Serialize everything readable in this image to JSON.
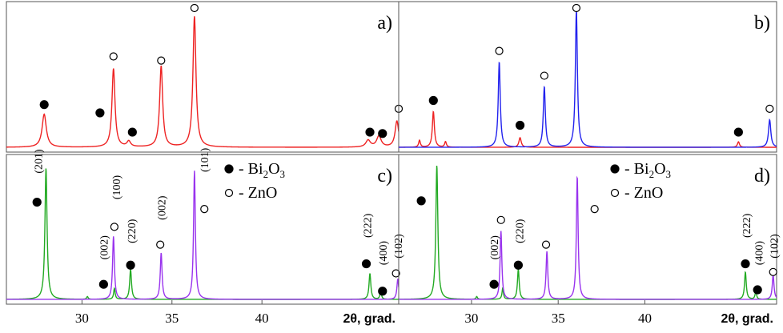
{
  "figure": {
    "x_axis_title": "2θ, grad.",
    "x_ticks": [
      30,
      35,
      40
    ],
    "marker_colors": {
      "Bi2O3": "#000000",
      "ZnO": "#ffffff"
    }
  },
  "chart_data": [
    {
      "panel": "a)",
      "type": "line",
      "xlim": [
        25.8,
        47.6
      ],
      "series": [
        {
          "color": "#ee2222",
          "peaks": [
            {
              "x": 27.9,
              "h": 0.24,
              "w": 0.14
            },
            {
              "x": 31.75,
              "h": 0.57,
              "w": 0.1
            },
            {
              "x": 32.6,
              "h": 0.04,
              "w": 0.12
            },
            {
              "x": 34.4,
              "h": 0.59,
              "w": 0.1
            },
            {
              "x": 36.25,
              "h": 0.95,
              "w": 0.1
            },
            {
              "x": 45.9,
              "h": 0.05,
              "w": 0.15
            },
            {
              "x": 46.5,
              "h": 0.08,
              "w": 0.15
            },
            {
              "x": 47.5,
              "h": 0.19,
              "w": 0.12
            }
          ]
        }
      ],
      "markers": [
        {
          "x": 27.9,
          "h": 0.31,
          "phase": "Bi2O3"
        },
        {
          "x": 31.0,
          "h": 0.25,
          "phase": "Bi2O3"
        },
        {
          "x": 31.75,
          "h": 0.66,
          "phase": "ZnO"
        },
        {
          "x": 32.8,
          "h": 0.11,
          "phase": "Bi2O3"
        },
        {
          "x": 34.4,
          "h": 0.63,
          "phase": "ZnO"
        },
        {
          "x": 36.25,
          "h": 1.03,
          "phase": "ZnO"
        },
        {
          "x": 46.0,
          "h": 0.11,
          "phase": "Bi2O3"
        },
        {
          "x": 46.7,
          "h": 0.1,
          "phase": "Bi2O3"
        },
        {
          "x": 47.6,
          "h": 0.28,
          "phase": "ZnO"
        }
      ]
    },
    {
      "panel": "b)",
      "type": "line",
      "xlim": [
        25.8,
        47.6
      ],
      "series": [
        {
          "color": "#ee2222",
          "peaks": [
            {
              "x": 27.0,
              "h": 0.05,
              "w": 0.06
            },
            {
              "x": 27.8,
              "h": 0.26,
              "w": 0.07
            },
            {
              "x": 28.5,
              "h": 0.04,
              "w": 0.06
            },
            {
              "x": 32.8,
              "h": 0.07,
              "w": 0.08
            },
            {
              "x": 45.4,
              "h": 0.04,
              "w": 0.07
            }
          ]
        },
        {
          "color": "#2222ee",
          "peaks": [
            {
              "x": 31.6,
              "h": 0.62,
              "w": 0.07
            },
            {
              "x": 34.2,
              "h": 0.44,
              "w": 0.07
            },
            {
              "x": 36.05,
              "h": 1.0,
              "w": 0.07
            },
            {
              "x": 47.2,
              "h": 0.2,
              "w": 0.08
            }
          ]
        }
      ],
      "markers": [
        {
          "x": 27.8,
          "h": 0.34,
          "phase": "Bi2O3"
        },
        {
          "x": 31.6,
          "h": 0.7,
          "phase": "ZnO"
        },
        {
          "x": 32.8,
          "h": 0.16,
          "phase": "Bi2O3"
        },
        {
          "x": 34.2,
          "h": 0.52,
          "phase": "ZnO"
        },
        {
          "x": 36.05,
          "h": 1.1,
          "phase": "ZnO"
        },
        {
          "x": 45.4,
          "h": 0.11,
          "phase": "Bi2O3"
        },
        {
          "x": 47.2,
          "h": 0.28,
          "phase": "ZnO"
        }
      ]
    },
    {
      "panel": "c)",
      "type": "line",
      "xlim": [
        25.8,
        47.6
      ],
      "series": [
        {
          "color": "#22aa22",
          "peaks": [
            {
              "x": 28.0,
              "h": 0.96,
              "w": 0.07
            },
            {
              "x": 30.3,
              "h": 0.02,
              "w": 0.05
            },
            {
              "x": 31.8,
              "h": 0.08,
              "w": 0.05
            },
            {
              "x": 32.7,
              "h": 0.22,
              "w": 0.06
            },
            {
              "x": 46.0,
              "h": 0.19,
              "w": 0.06
            },
            {
              "x": 46.6,
              "h": 0.06,
              "w": 0.05
            }
          ]
        },
        {
          "color": "#9933ee",
          "peaks": [
            {
              "x": 31.75,
              "h": 0.46,
              "w": 0.06
            },
            {
              "x": 34.4,
              "h": 0.34,
              "w": 0.06
            },
            {
              "x": 36.25,
              "h": 0.94,
              "w": 0.06
            },
            {
              "x": 47.55,
              "h": 0.15,
              "w": 0.06
            }
          ]
        }
      ],
      "markers": [
        {
          "x": 27.5,
          "h": 0.71,
          "phase": "Bi2O3"
        },
        {
          "x": 31.2,
          "h": 0.11,
          "phase": "Bi2O3"
        },
        {
          "x": 31.8,
          "h": 0.53,
          "phase": "ZnO"
        },
        {
          "x": 32.7,
          "h": 0.25,
          "phase": "Bi2O3"
        },
        {
          "x": 34.35,
          "h": 0.4,
          "phase": "ZnO"
        },
        {
          "x": 36.8,
          "h": 0.66,
          "phase": "ZnO"
        },
        {
          "x": 45.8,
          "h": 0.26,
          "phase": "Bi2O3"
        },
        {
          "x": 46.7,
          "h": 0.06,
          "phase": "Bi2O3"
        },
        {
          "x": 47.45,
          "h": 0.19,
          "phase": "ZnO"
        }
      ],
      "miller_indices": [
        {
          "x": 27.55,
          "h": 0.92,
          "label": "(201)"
        },
        {
          "x": 31.2,
          "h": 0.29,
          "label": "(002)"
        },
        {
          "x": 31.9,
          "h": 0.73,
          "label": "(100)"
        },
        {
          "x": 32.75,
          "h": 0.41,
          "label": "(220)"
        },
        {
          "x": 34.4,
          "h": 0.58,
          "label": "(002)"
        },
        {
          "x": 36.8,
          "h": 0.93,
          "label": "(101)"
        },
        {
          "x": 45.85,
          "h": 0.45,
          "label": "(222)"
        },
        {
          "x": 46.7,
          "h": 0.25,
          "label": "(400)"
        },
        {
          "x": 47.55,
          "h": 0.3,
          "label": "(102)"
        }
      ],
      "legend": [
        {
          "phase": "Bi2O3",
          "text": "- Bi",
          "sub": "2",
          "text2": "O",
          "sub2": "3"
        },
        {
          "phase": "ZnO",
          "text": "- ZnO"
        }
      ]
    },
    {
      "panel": "d)",
      "type": "line",
      "xlim": [
        25.8,
        47.6
      ],
      "series": [
        {
          "color": "#22aa22",
          "peaks": [
            {
              "x": 28.0,
              "h": 0.98,
              "w": 0.07
            },
            {
              "x": 30.3,
              "h": 0.02,
              "w": 0.05
            },
            {
              "x": 31.8,
              "h": 0.08,
              "w": 0.05
            },
            {
              "x": 32.7,
              "h": 0.22,
              "w": 0.06
            },
            {
              "x": 45.8,
              "h": 0.2,
              "w": 0.06
            },
            {
              "x": 46.4,
              "h": 0.06,
              "w": 0.05
            }
          ]
        },
        {
          "color": "#9933ee",
          "peaks": [
            {
              "x": 31.7,
              "h": 0.5,
              "w": 0.06
            },
            {
              "x": 34.35,
              "h": 0.35,
              "w": 0.06
            },
            {
              "x": 36.1,
              "h": 0.9,
              "w": 0.06
            },
            {
              "x": 47.4,
              "h": 0.18,
              "w": 0.06
            }
          ]
        }
      ],
      "markers": [
        {
          "x": 27.1,
          "h": 0.72,
          "phase": "Bi2O3"
        },
        {
          "x": 31.3,
          "h": 0.11,
          "phase": "Bi2O3"
        },
        {
          "x": 31.7,
          "h": 0.58,
          "phase": "ZnO"
        },
        {
          "x": 32.7,
          "h": 0.25,
          "phase": "Bi2O3"
        },
        {
          "x": 34.3,
          "h": 0.4,
          "phase": "ZnO"
        },
        {
          "x": 37.1,
          "h": 0.66,
          "phase": "ZnO"
        },
        {
          "x": 45.8,
          "h": 0.26,
          "phase": "Bi2O3"
        },
        {
          "x": 46.5,
          "h": 0.07,
          "phase": "Bi2O3"
        },
        {
          "x": 47.4,
          "h": 0.2,
          "phase": "ZnO"
        }
      ],
      "miller_indices": [
        {
          "x": 31.3,
          "h": 0.29,
          "label": "(002)"
        },
        {
          "x": 32.75,
          "h": 0.41,
          "label": "(220)"
        },
        {
          "x": 45.85,
          "h": 0.45,
          "label": "(222)"
        },
        {
          "x": 46.55,
          "h": 0.25,
          "label": "(400)"
        },
        {
          "x": 47.45,
          "h": 0.3,
          "label": "(102)"
        }
      ],
      "legend": [
        {
          "phase": "Bi2O3",
          "text": "- Bi",
          "sub": "2",
          "text2": "O",
          "sub2": "3"
        },
        {
          "phase": "ZnO",
          "text": "- ZnO"
        }
      ]
    }
  ]
}
